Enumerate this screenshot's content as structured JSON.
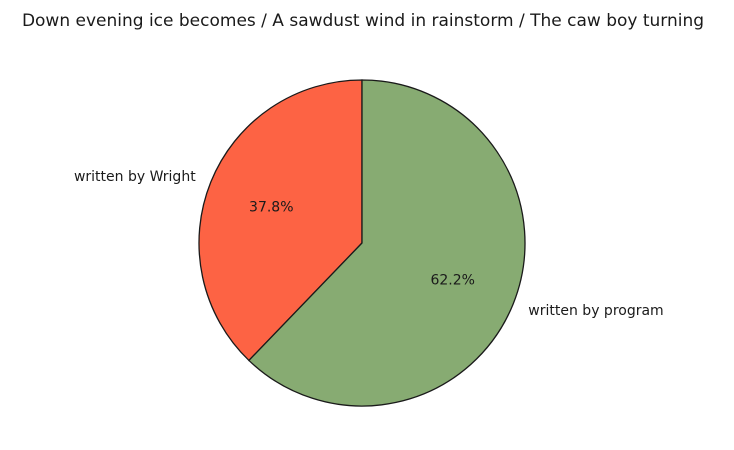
{
  "chart_data": {
    "type": "pie",
    "title": "Down evening ice becomes / A sawdust wind in rainstorm / The caw boy turning",
    "legend": "none",
    "slices": [
      {
        "label": "written by Wright",
        "value": 37.8,
        "pct_label": "37.8%",
        "color": "#fd6344"
      },
      {
        "label": "written by program",
        "value": 62.2,
        "pct_label": "62.2%",
        "color": "#87ab72"
      }
    ],
    "start_angle_deg": 90,
    "direction": "counterclockwise"
  }
}
